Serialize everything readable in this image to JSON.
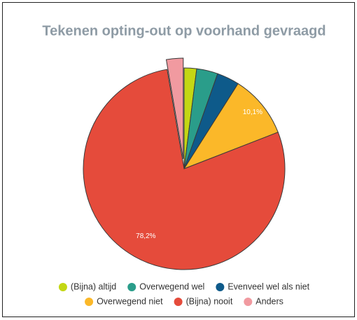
{
  "chart_data": {
    "type": "pie",
    "title": "Tekenen opting-out op voorhand gevraagd",
    "categories": [
      "(Bijna) altijd",
      "Overwegend wel",
      "Evenveel wel als niet",
      "Overwegend niet",
      "(Bijna) nooit",
      "Anders"
    ],
    "values": [
      2,
      3.4,
      3.6,
      10.1,
      78.2,
      2.7
    ],
    "value_labels": [
      null,
      null,
      null,
      "10,1%",
      "78,2%",
      null
    ],
    "colors": [
      "#c3d714",
      "#2a9d8a",
      "#0e5a8a",
      "#fbb829",
      "#e54b3b",
      "#f19aa0"
    ],
    "exploded": [
      false,
      false,
      false,
      false,
      false,
      true
    ],
    "legend": "bottom"
  }
}
